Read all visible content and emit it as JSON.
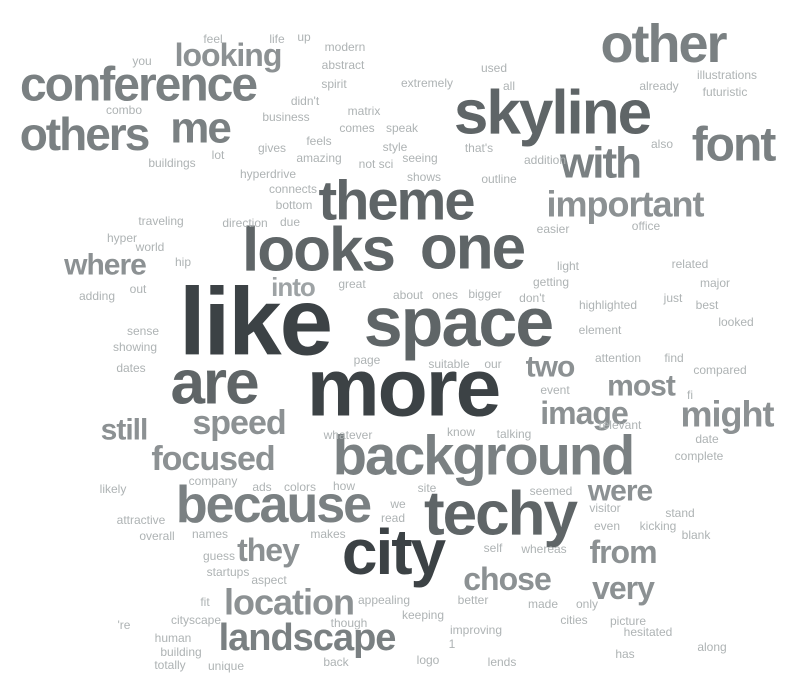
{
  "words": [
    {
      "text": "like",
      "tone": 5
    },
    {
      "text": "more",
      "tone": 5
    },
    {
      "text": "space",
      "tone": 4
    },
    {
      "text": "looks",
      "tone": 4
    },
    {
      "text": "one",
      "tone": 4
    },
    {
      "text": "city",
      "tone": 5
    },
    {
      "text": "techy",
      "tone": 4
    },
    {
      "text": "are",
      "tone": 4
    },
    {
      "text": "skyline",
      "tone": 4
    },
    {
      "text": "background",
      "tone": 3
    },
    {
      "text": "theme",
      "tone": 4
    },
    {
      "text": "other",
      "tone": 3
    },
    {
      "text": "because",
      "tone": 3
    },
    {
      "text": "conference",
      "tone": 3
    },
    {
      "text": "others",
      "tone": 3
    },
    {
      "text": "font",
      "tone": 3
    },
    {
      "text": "with",
      "tone": 3
    },
    {
      "text": "me",
      "tone": 3
    },
    {
      "text": "landscape",
      "tone": 3
    },
    {
      "text": "location",
      "tone": 2
    },
    {
      "text": "important",
      "tone": 2
    },
    {
      "text": "might",
      "tone": 2
    },
    {
      "text": "focused",
      "tone": 2
    },
    {
      "text": "speed",
      "tone": 2
    },
    {
      "text": "image",
      "tone": 2
    },
    {
      "text": "looking",
      "tone": 2
    },
    {
      "text": "where",
      "tone": 2
    },
    {
      "text": "very",
      "tone": 2
    },
    {
      "text": "from",
      "tone": 2
    },
    {
      "text": "chose",
      "tone": 2
    },
    {
      "text": "they",
      "tone": 2
    },
    {
      "text": "still",
      "tone": 2
    },
    {
      "text": "two",
      "tone": 2
    },
    {
      "text": "most",
      "tone": 2
    },
    {
      "text": "were",
      "tone": 2
    },
    {
      "text": "into",
      "tone": 1
    },
    {
      "text": "feel",
      "tone": 0
    },
    {
      "text": "life",
      "tone": 0
    },
    {
      "text": "up",
      "tone": 0
    },
    {
      "text": "modern",
      "tone": 0
    },
    {
      "text": "abstract",
      "tone": 0
    },
    {
      "text": "spirit",
      "tone": 0
    },
    {
      "text": "you",
      "tone": 0
    },
    {
      "text": "combo",
      "tone": 0
    },
    {
      "text": "extremely",
      "tone": 0
    },
    {
      "text": "used",
      "tone": 0
    },
    {
      "text": "all",
      "tone": 0
    },
    {
      "text": "already",
      "tone": 0
    },
    {
      "text": "illustrations",
      "tone": 0
    },
    {
      "text": "futuristic",
      "tone": 0
    },
    {
      "text": "didn't",
      "tone": 0
    },
    {
      "text": "business",
      "tone": 0
    },
    {
      "text": "matrix",
      "tone": 0
    },
    {
      "text": "comes",
      "tone": 0
    },
    {
      "text": "speak",
      "tone": 0
    },
    {
      "text": "feels",
      "tone": 0
    },
    {
      "text": "gives",
      "tone": 0
    },
    {
      "text": "amazing",
      "tone": 0
    },
    {
      "text": "style",
      "tone": 0
    },
    {
      "text": "lot",
      "tone": 0
    },
    {
      "text": "buildings",
      "tone": 0
    },
    {
      "text": "not sci",
      "tone": 0
    },
    {
      "text": "seeing",
      "tone": 0
    },
    {
      "text": "that's",
      "tone": 0
    },
    {
      "text": "also",
      "tone": 0
    },
    {
      "text": "shows",
      "tone": 0
    },
    {
      "text": "addition",
      "tone": 0
    },
    {
      "text": "hyperdrive",
      "tone": 0
    },
    {
      "text": "outline",
      "tone": 0
    },
    {
      "text": "connects",
      "tone": 0
    },
    {
      "text": "bottom",
      "tone": 0
    },
    {
      "text": "traveling",
      "tone": 0
    },
    {
      "text": "direction",
      "tone": 0
    },
    {
      "text": "due",
      "tone": 0
    },
    {
      "text": "easier",
      "tone": 0
    },
    {
      "text": "office",
      "tone": 0
    },
    {
      "text": "hyper",
      "tone": 0
    },
    {
      "text": "world",
      "tone": 0
    },
    {
      "text": "hip",
      "tone": 0
    },
    {
      "text": "light",
      "tone": 0
    },
    {
      "text": "related",
      "tone": 0
    },
    {
      "text": "getting",
      "tone": 0
    },
    {
      "text": "major",
      "tone": 0
    },
    {
      "text": "adding",
      "tone": 0
    },
    {
      "text": "out",
      "tone": 0
    },
    {
      "text": "great",
      "tone": 0
    },
    {
      "text": "about",
      "tone": 0
    },
    {
      "text": "ones",
      "tone": 0
    },
    {
      "text": "bigger",
      "tone": 0
    },
    {
      "text": "don't",
      "tone": 0
    },
    {
      "text": "just",
      "tone": 0
    },
    {
      "text": "best",
      "tone": 0
    },
    {
      "text": "highlighted",
      "tone": 0
    },
    {
      "text": "looked",
      "tone": 0
    },
    {
      "text": "element",
      "tone": 0
    },
    {
      "text": "sense",
      "tone": 0
    },
    {
      "text": "showing",
      "tone": 0
    },
    {
      "text": "page",
      "tone": 0
    },
    {
      "text": "suitable",
      "tone": 0
    },
    {
      "text": "our",
      "tone": 0
    },
    {
      "text": "attention",
      "tone": 0
    },
    {
      "text": "find",
      "tone": 0
    },
    {
      "text": "dates",
      "tone": 0
    },
    {
      "text": "event",
      "tone": 0
    },
    {
      "text": "compared",
      "tone": 0
    },
    {
      "text": "fi",
      "tone": 0
    },
    {
      "text": "whatever",
      "tone": 0
    },
    {
      "text": "know",
      "tone": 0
    },
    {
      "text": "talking",
      "tone": 0
    },
    {
      "text": "relevant",
      "tone": 0
    },
    {
      "text": "date",
      "tone": 0
    },
    {
      "text": "complete",
      "tone": 0
    },
    {
      "text": "likely",
      "tone": 0
    },
    {
      "text": "company",
      "tone": 0
    },
    {
      "text": "ads",
      "tone": 0
    },
    {
      "text": "colors",
      "tone": 0
    },
    {
      "text": "how",
      "tone": 0
    },
    {
      "text": "site",
      "tone": 0
    },
    {
      "text": "seemed",
      "tone": 0
    },
    {
      "text": "we",
      "tone": 0
    },
    {
      "text": "read",
      "tone": 0
    },
    {
      "text": "stand",
      "tone": 0
    },
    {
      "text": "visitor",
      "tone": 0
    },
    {
      "text": "even",
      "tone": 0
    },
    {
      "text": "kicking",
      "tone": 0
    },
    {
      "text": "attractive",
      "tone": 0
    },
    {
      "text": "overall",
      "tone": 0
    },
    {
      "text": "names",
      "tone": 0
    },
    {
      "text": "makes",
      "tone": 0
    },
    {
      "text": "self",
      "tone": 0
    },
    {
      "text": "whereas",
      "tone": 0
    },
    {
      "text": "blank",
      "tone": 0
    },
    {
      "text": "guess",
      "tone": 0
    },
    {
      "text": "startups",
      "tone": 0
    },
    {
      "text": "aspect",
      "tone": 0
    },
    {
      "text": "appealing",
      "tone": 0
    },
    {
      "text": "better",
      "tone": 0
    },
    {
      "text": "made",
      "tone": 0
    },
    {
      "text": "only",
      "tone": 0
    },
    {
      "text": "fit",
      "tone": 0
    },
    {
      "text": "cityscape",
      "tone": 0
    },
    {
      "text": "'re",
      "tone": 0
    },
    {
      "text": "though",
      "tone": 0
    },
    {
      "text": "keeping",
      "tone": 0
    },
    {
      "text": "cities",
      "tone": 0
    },
    {
      "text": "picture",
      "tone": 0
    },
    {
      "text": "human",
      "tone": 0
    },
    {
      "text": "building",
      "tone": 0
    },
    {
      "text": "improving",
      "tone": 0
    },
    {
      "text": "1",
      "tone": 0
    },
    {
      "text": "hesitated",
      "tone": 0
    },
    {
      "text": "totally",
      "tone": 0
    },
    {
      "text": "unique",
      "tone": 0
    },
    {
      "text": "back",
      "tone": 0
    },
    {
      "text": "logo",
      "tone": 0
    },
    {
      "text": "lends",
      "tone": 0
    },
    {
      "text": "has",
      "tone": 0
    },
    {
      "text": "along",
      "tone": 0
    }
  ],
  "palette": [
    "#aeb3b4",
    "#9ea3a5",
    "#8c9193",
    "#7a8082",
    "#5f6567",
    "#3c4245"
  ]
}
